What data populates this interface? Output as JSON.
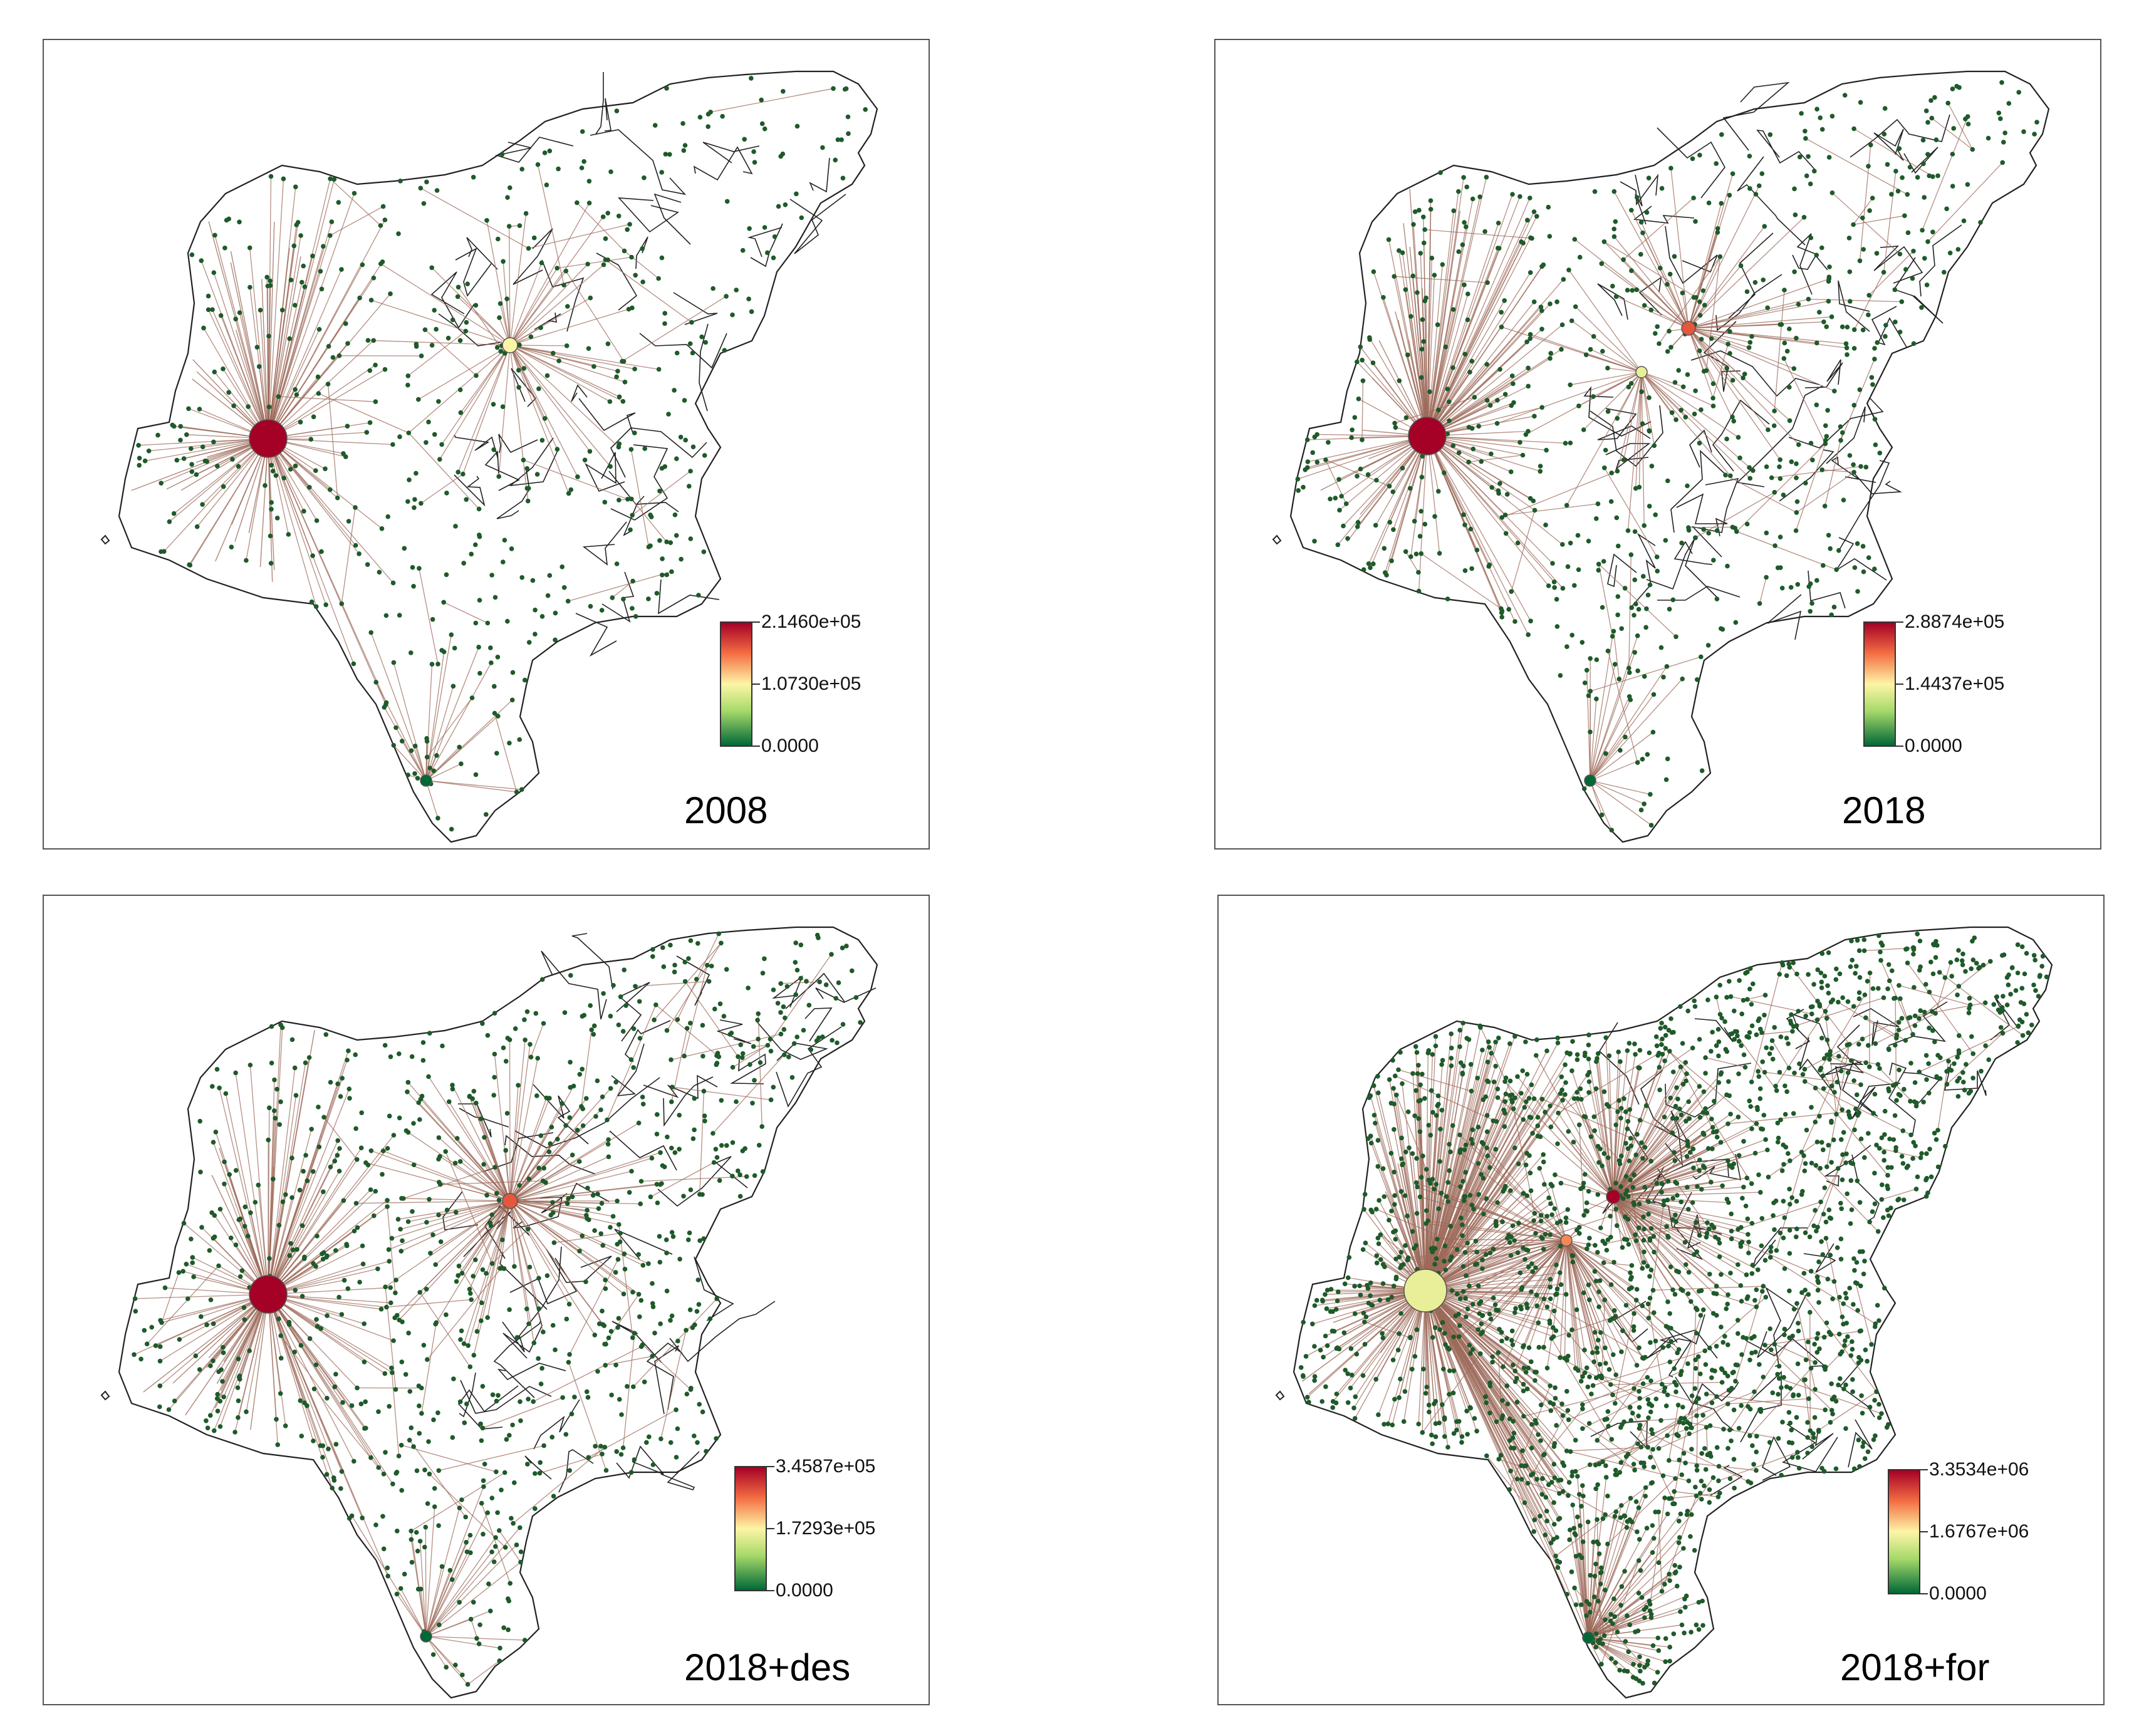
{
  "figure": {
    "panels": [
      {
        "id": "p1",
        "label": "2008",
        "legend": {
          "max": "2.1460e+05",
          "mid": "1.0730e+05",
          "min": "0.0000"
        },
        "hubs": [
          {
            "name": "western-hub",
            "value_fraction": 1.0
          },
          {
            "name": "central-hub",
            "value_fraction": 0.5
          },
          {
            "name": "southern-hub",
            "value_fraction": 0.0
          }
        ]
      },
      {
        "id": "p2",
        "label": "2018",
        "legend": {
          "max": "2.8874e+05",
          "mid": "1.4437e+05",
          "min": "0.0000"
        },
        "hubs": [
          {
            "name": "western-hub",
            "value_fraction": 1.0
          },
          {
            "name": "northeast-hub",
            "value_fraction": 0.8
          },
          {
            "name": "central-hub",
            "value_fraction": 0.45
          },
          {
            "name": "southern-hub",
            "value_fraction": 0.0
          }
        ]
      },
      {
        "id": "p3",
        "label": "2018+des",
        "legend": {
          "max": "3.4587e+05",
          "mid": "1.7293e+05",
          "min": "0.0000"
        },
        "hubs": [
          {
            "name": "western-hub",
            "value_fraction": 1.0
          },
          {
            "name": "central-hub",
            "value_fraction": 0.8
          },
          {
            "name": "southern-hub",
            "value_fraction": 0.0
          }
        ]
      },
      {
        "id": "p4",
        "label": "2018+for",
        "legend": {
          "max": "3.3534e+06",
          "mid": "1.6767e+06",
          "min": "0.0000"
        },
        "hubs": [
          {
            "name": "western-hub",
            "value_fraction": 0.45
          },
          {
            "name": "northeast-hub",
            "value_fraction": 1.0
          },
          {
            "name": "central-hub",
            "value_fraction": 0.7
          },
          {
            "name": "southern-hub",
            "value_fraction": 0.0
          }
        ]
      }
    ],
    "colors": {
      "edge": "#9c6a5a",
      "node": "#1f5a2a",
      "border": "#222222",
      "scale_high": "#a50026",
      "scale_mid": "#fdf5a6",
      "scale_low": "#006837"
    }
  }
}
